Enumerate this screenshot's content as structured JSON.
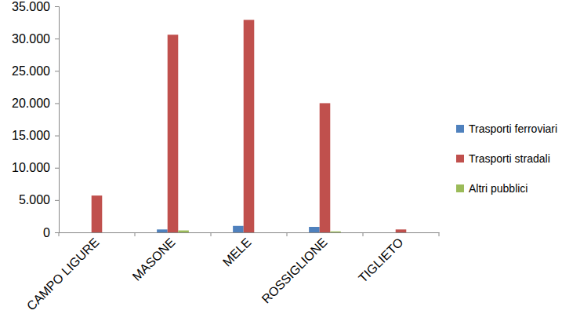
{
  "chart_data": {
    "type": "bar",
    "categories": [
      "CAMPO LIGURE",
      "MASONE",
      "MELE",
      "ROSSIGLIONE",
      "TIGLIETO"
    ],
    "series": [
      {
        "name": "Trasporti ferroviari",
        "color": "#4f81bd",
        "values": [
          0,
          450,
          1000,
          850,
          0
        ]
      },
      {
        "name": "Trasporti stradali",
        "color": "#c0504d",
        "values": [
          5700,
          30600,
          32900,
          20000,
          450
        ]
      },
      {
        "name": "Altri pubblici",
        "color": "#9bbb59",
        "values": [
          0,
          300,
          0,
          150,
          0
        ]
      }
    ],
    "ylim": [
      0,
      35000
    ],
    "yticks": [
      0,
      {
        "value": 5000,
        "label": "5.000"
      },
      {
        "value": 10000,
        "label": "10.000"
      },
      {
        "value": 15000,
        "label": "15.000"
      },
      {
        "value": 20000,
        "label": "20.000"
      },
      {
        "value": 25000,
        "label": "25.000"
      },
      {
        "value": 30000,
        "label": "30.000"
      },
      {
        "value": 35000,
        "label": "35.000"
      }
    ],
    "grid": false,
    "legend": "right"
  }
}
